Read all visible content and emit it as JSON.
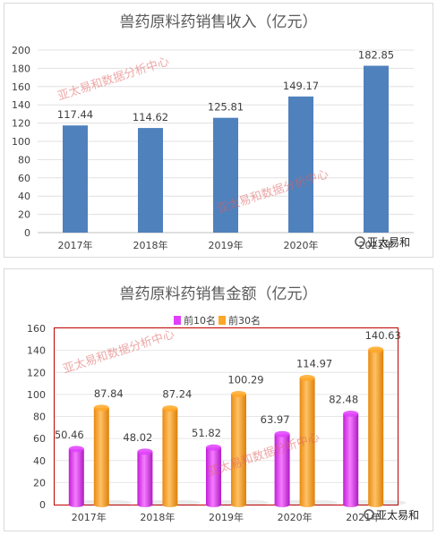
{
  "watermark": "亚太易和数据分析中心",
  "logo_text": "亚太易和",
  "chart_data": [
    {
      "type": "bar",
      "title": "兽药原料药销售收入（亿元）",
      "categories": [
        "2017年",
        "2018年",
        "2019年",
        "2020年",
        "2021年"
      ],
      "values": [
        117.44,
        114.62,
        125.81,
        149.17,
        182.85
      ],
      "value_labels": [
        "117.44",
        "114.62",
        "125.81",
        "149.17",
        "182.85"
      ],
      "ylim": [
        0,
        200
      ],
      "yticks": [
        "0",
        "20",
        "40",
        "60",
        "80",
        "100",
        "120",
        "140",
        "160",
        "180",
        "200"
      ],
      "grid": true,
      "color": "#4f81bd"
    },
    {
      "type": "bar",
      "title": "兽药原料药销售金额（亿元）",
      "categories": [
        "2017年",
        "2018年",
        "2019年",
        "2020年",
        "2021年"
      ],
      "series": [
        {
          "name": "前10名",
          "values": [
            50.46,
            48.02,
            51.82,
            63.97,
            82.48
          ],
          "labels": [
            "50.46",
            "48.02",
            "51.82",
            "63.97",
            "82.48"
          ],
          "color": "#e040fb"
        },
        {
          "name": "前30名",
          "values": [
            87.84,
            87.24,
            100.29,
            114.97,
            140.63
          ],
          "labels": [
            "87.84",
            "87.24",
            "100.29",
            "114.97",
            "140.63"
          ],
          "color": "#ffa726"
        }
      ],
      "ylim": [
        0,
        160
      ],
      "yticks": [
        "0",
        "20",
        "40",
        "60",
        "80",
        "100",
        "120",
        "140",
        "160"
      ],
      "legend": "top",
      "grid": true
    }
  ]
}
